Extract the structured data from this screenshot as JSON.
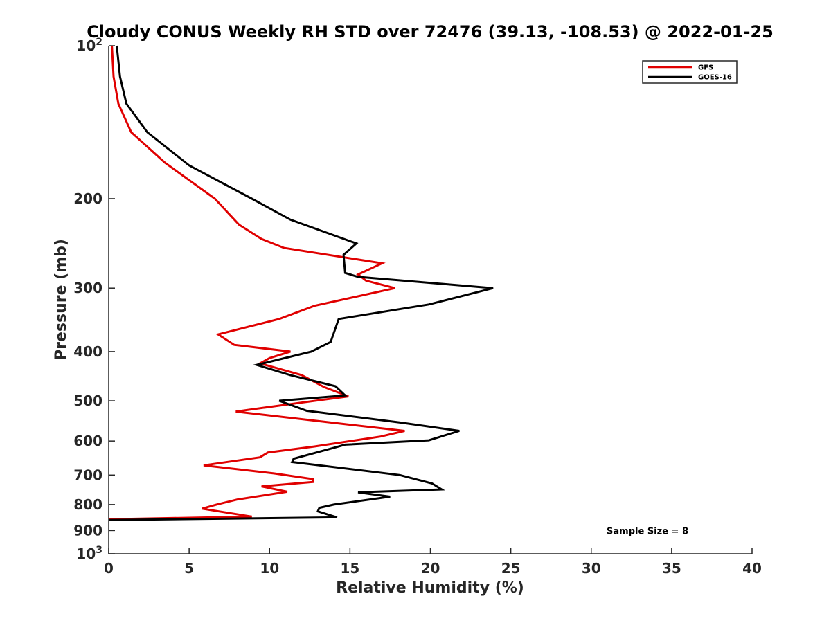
{
  "chart_data": {
    "type": "line",
    "title": "Cloudy CONUS Weekly RH STD over 72476 (39.13, -108.53) @ 2022-01-25",
    "xlabel": "Relative Humidity (%)",
    "ylabel": "Pressure (mb)",
    "xlim": [
      0,
      40
    ],
    "ylim": [
      100,
      1000
    ],
    "y_scale": "log",
    "y_reversed": true,
    "x_ticks": [
      "0",
      "5",
      "10",
      "15",
      "20",
      "25",
      "30",
      "35",
      "40"
    ],
    "y_ticks": [
      {
        "value": 100,
        "base": "10",
        "exp": "2"
      },
      {
        "value": 200,
        "label": "200"
      },
      {
        "value": 300,
        "label": "300"
      },
      {
        "value": 400,
        "label": "400"
      },
      {
        "value": 500,
        "label": "500"
      },
      {
        "value": 600,
        "label": "600"
      },
      {
        "value": 700,
        "label": "700"
      },
      {
        "value": 800,
        "label": "800"
      },
      {
        "value": 900,
        "label": "900"
      },
      {
        "value": 1000,
        "base": "10",
        "exp": "3"
      }
    ],
    "grid": false,
    "legend_position": "top-right",
    "series": [
      {
        "name": "GFS",
        "color": "#e00000",
        "points": [
          [
            0.2,
            100
          ],
          [
            0.3,
            115
          ],
          [
            0.6,
            130
          ],
          [
            1.4,
            148
          ],
          [
            3.5,
            170
          ],
          [
            6.6,
            200
          ],
          [
            8.1,
            225
          ],
          [
            9.5,
            240
          ],
          [
            10.9,
            250
          ],
          [
            17.0,
            268
          ],
          [
            15.5,
            282
          ],
          [
            16.0,
            290
          ],
          [
            17.8,
            300
          ],
          [
            12.8,
            325
          ],
          [
            10.6,
            345
          ],
          [
            6.8,
            370
          ],
          [
            7.8,
            388
          ],
          [
            11.3,
            400
          ],
          [
            10.0,
            412
          ],
          [
            9.4,
            422
          ],
          [
            12.0,
            445
          ],
          [
            13.4,
            470
          ],
          [
            14.9,
            490
          ],
          [
            11.8,
            505
          ],
          [
            7.9,
            525
          ],
          [
            14.5,
            555
          ],
          [
            18.4,
            573
          ],
          [
            16.9,
            588
          ],
          [
            12.8,
            615
          ],
          [
            9.9,
            632
          ],
          [
            9.4,
            646
          ],
          [
            5.9,
            670
          ],
          [
            10.3,
            695
          ],
          [
            12.7,
            713
          ],
          [
            12.7,
            722
          ],
          [
            9.5,
            737
          ],
          [
            11.1,
            755
          ],
          [
            8.0,
            782
          ],
          [
            6.7,
            800
          ],
          [
            5.8,
            815
          ],
          [
            8.9,
            845
          ],
          [
            0.0,
            855
          ]
        ]
      },
      {
        "name": "GOES-16",
        "color": "#000000",
        "points": [
          [
            0.5,
            100
          ],
          [
            0.7,
            115
          ],
          [
            1.1,
            130
          ],
          [
            2.4,
            148
          ],
          [
            5.0,
            172
          ],
          [
            8.9,
            200
          ],
          [
            11.3,
            220
          ],
          [
            15.4,
            245
          ],
          [
            14.6,
            258
          ],
          [
            14.7,
            280
          ],
          [
            15.5,
            285
          ],
          [
            23.9,
            300
          ],
          [
            19.9,
            323
          ],
          [
            14.3,
            345
          ],
          [
            13.8,
            383
          ],
          [
            12.6,
            400
          ],
          [
            9.2,
            425
          ],
          [
            11.3,
            445
          ],
          [
            14.1,
            468
          ],
          [
            14.7,
            488
          ],
          [
            10.6,
            500
          ],
          [
            12.3,
            523
          ],
          [
            18.2,
            552
          ],
          [
            21.8,
            573
          ],
          [
            19.9,
            598
          ],
          [
            14.7,
            610
          ],
          [
            13.9,
            620
          ],
          [
            11.5,
            650
          ],
          [
            11.4,
            660
          ],
          [
            18.1,
            700
          ],
          [
            20.1,
            727
          ],
          [
            20.7,
            747
          ],
          [
            15.5,
            757
          ],
          [
            17.5,
            772
          ],
          [
            14.0,
            800
          ],
          [
            13.1,
            812
          ],
          [
            13.0,
            825
          ],
          [
            14.2,
            848
          ],
          [
            0.0,
            858
          ]
        ]
      }
    ],
    "annotations": [
      {
        "text": "Sample Size = 8",
        "x": 33.5,
        "y": 900
      }
    ]
  }
}
